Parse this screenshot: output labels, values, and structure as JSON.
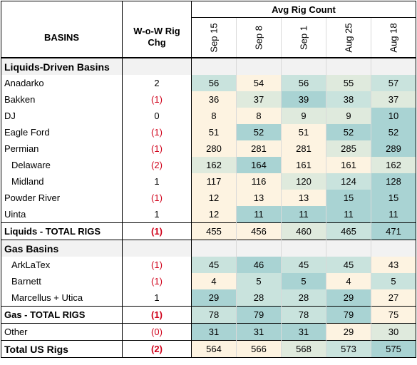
{
  "header": {
    "title": "Avg Rig Count",
    "basins_label": "BASINS",
    "wow_line1": "W-o-W Rig",
    "wow_line2": "Chg",
    "dates": [
      "Sep 15",
      "Sep 8",
      "Sep 1",
      "Aug 25",
      "Aug 18"
    ]
  },
  "colors": {
    "teal_strong": "#a9d3d3",
    "teal": "#c9e3dd",
    "teal_light": "#dfeadd",
    "cream": "#fdf3e1",
    "negative_text": "#d0021b",
    "section_fill": "#f2f2f2"
  },
  "rows": [
    {
      "kind": "section",
      "basin": "Liquids-Driven Basins",
      "wow": "",
      "values": [
        "",
        "",
        "",
        "",
        ""
      ]
    },
    {
      "kind": "basin",
      "basin": "Anadarko",
      "wow": "2",
      "neg": false,
      "values": [
        "56",
        "54",
        "56",
        "55",
        "57"
      ],
      "fills": [
        "t",
        "c",
        "t",
        "l",
        "t"
      ]
    },
    {
      "kind": "basin",
      "basin": "Bakken",
      "wow": "(1)",
      "neg": true,
      "values": [
        "36",
        "37",
        "39",
        "38",
        "37"
      ],
      "fills": [
        "c",
        "l",
        "T",
        "t",
        "l"
      ]
    },
    {
      "kind": "basin",
      "basin": "DJ",
      "wow": "0",
      "neg": false,
      "values": [
        "8",
        "8",
        "9",
        "9",
        "10"
      ],
      "fills": [
        "c",
        "c",
        "l",
        "l",
        "T"
      ]
    },
    {
      "kind": "basin",
      "basin": "Eagle Ford",
      "wow": "(1)",
      "neg": true,
      "values": [
        "51",
        "52",
        "51",
        "52",
        "52"
      ],
      "fills": [
        "c",
        "T",
        "c",
        "T",
        "T"
      ]
    },
    {
      "kind": "basin",
      "basin": "Permian",
      "wow": "(1)",
      "neg": true,
      "values": [
        "280",
        "281",
        "281",
        "285",
        "289"
      ],
      "fills": [
        "c",
        "c",
        "c",
        "l",
        "T"
      ]
    },
    {
      "kind": "basin-sub",
      "basin": "Delaware",
      "wow": "(2)",
      "neg": true,
      "values": [
        "162",
        "164",
        "161",
        "161",
        "162"
      ],
      "fills": [
        "l",
        "T",
        "c",
        "c",
        "l"
      ]
    },
    {
      "kind": "basin-sub",
      "basin": "Midland",
      "wow": "1",
      "neg": false,
      "values": [
        "117",
        "116",
        "120",
        "124",
        "128"
      ],
      "fills": [
        "c",
        "c",
        "l",
        "t",
        "T"
      ]
    },
    {
      "kind": "basin",
      "basin": "Powder River",
      "wow": "(1)",
      "neg": true,
      "values": [
        "12",
        "13",
        "13",
        "15",
        "15"
      ],
      "fills": [
        "c",
        "c",
        "c",
        "T",
        "T"
      ]
    },
    {
      "kind": "basin",
      "basin": "Uinta",
      "wow": "1",
      "neg": false,
      "values": [
        "12",
        "11",
        "11",
        "11",
        "11"
      ],
      "fills": [
        "c",
        "T",
        "T",
        "T",
        "T"
      ]
    },
    {
      "kind": "total",
      "basin": "Liquids - TOTAL RIGS",
      "wow": "(1)",
      "neg": true,
      "values": [
        "455",
        "456",
        "460",
        "465",
        "471"
      ],
      "fills": [
        "c",
        "c",
        "l",
        "t",
        "T"
      ]
    },
    {
      "kind": "section",
      "basin": "Gas Basins",
      "wow": "",
      "values": [
        "",
        "",
        "",
        "",
        ""
      ]
    },
    {
      "kind": "basin-sub",
      "basin": "ArkLaTex",
      "wow": "(1)",
      "neg": true,
      "values": [
        "45",
        "46",
        "45",
        "45",
        "43"
      ],
      "fills": [
        "t",
        "T",
        "t",
        "t",
        "c"
      ]
    },
    {
      "kind": "basin-sub",
      "basin": "Barnett",
      "wow": "(1)",
      "neg": true,
      "values": [
        "4",
        "5",
        "5",
        "4",
        "5"
      ],
      "fills": [
        "c",
        "t",
        "T",
        "c",
        "t"
      ]
    },
    {
      "kind": "basin-sub",
      "basin": "Marcellus + Utica",
      "wow": "1",
      "neg": false,
      "values": [
        "29",
        "28",
        "28",
        "29",
        "27"
      ],
      "fills": [
        "T",
        "t",
        "t",
        "T",
        "c"
      ]
    },
    {
      "kind": "total",
      "basin": "Gas - TOTAL RIGS",
      "wow": "(1)",
      "neg": true,
      "values": [
        "78",
        "79",
        "78",
        "79",
        "75"
      ],
      "fills": [
        "t",
        "T",
        "t",
        "T",
        "c"
      ]
    },
    {
      "kind": "other",
      "basin": "Other",
      "wow": "(0)",
      "neg": true,
      "values": [
        "31",
        "31",
        "31",
        "29",
        "30"
      ],
      "fills": [
        "T",
        "T",
        "T",
        "c",
        "l"
      ]
    },
    {
      "kind": "final",
      "basin": "Total US Rigs",
      "wow": "(2)",
      "neg": true,
      "values": [
        "564",
        "566",
        "568",
        "573",
        "575"
      ],
      "fills": [
        "c",
        "c",
        "l",
        "t",
        "T"
      ]
    }
  ]
}
